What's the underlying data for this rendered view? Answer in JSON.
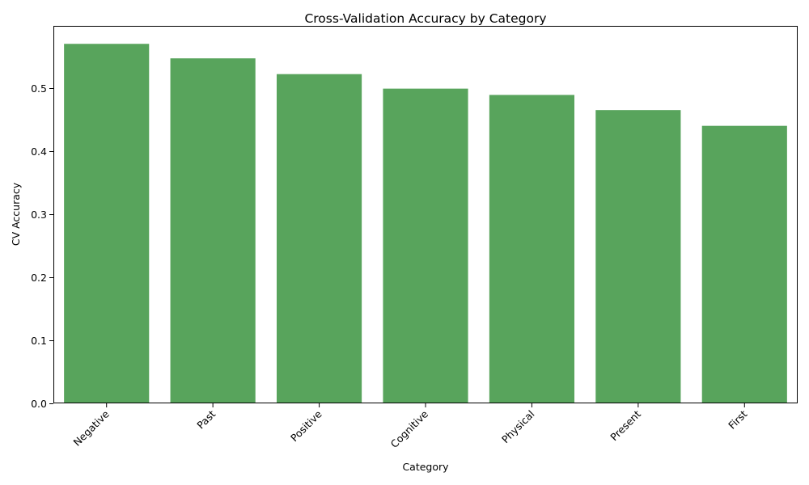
{
  "chart_data": {
    "type": "bar",
    "title": "Cross-Validation Accuracy by Category",
    "xlabel": "Category",
    "ylabel": "CV Accuracy",
    "categories": [
      "Negative",
      "Past",
      "Positive",
      "Cognitive",
      "Physical",
      "Present",
      "First"
    ],
    "values": [
      0.57,
      0.547,
      0.522,
      0.499,
      0.489,
      0.465,
      0.44
    ],
    "ylim": [
      0,
      0.5985
    ],
    "yticks": [
      "0.0",
      "0.1",
      "0.2",
      "0.3",
      "0.4",
      "0.5"
    ],
    "bar_color": "#58a45c",
    "grid": false,
    "legend": false
  }
}
